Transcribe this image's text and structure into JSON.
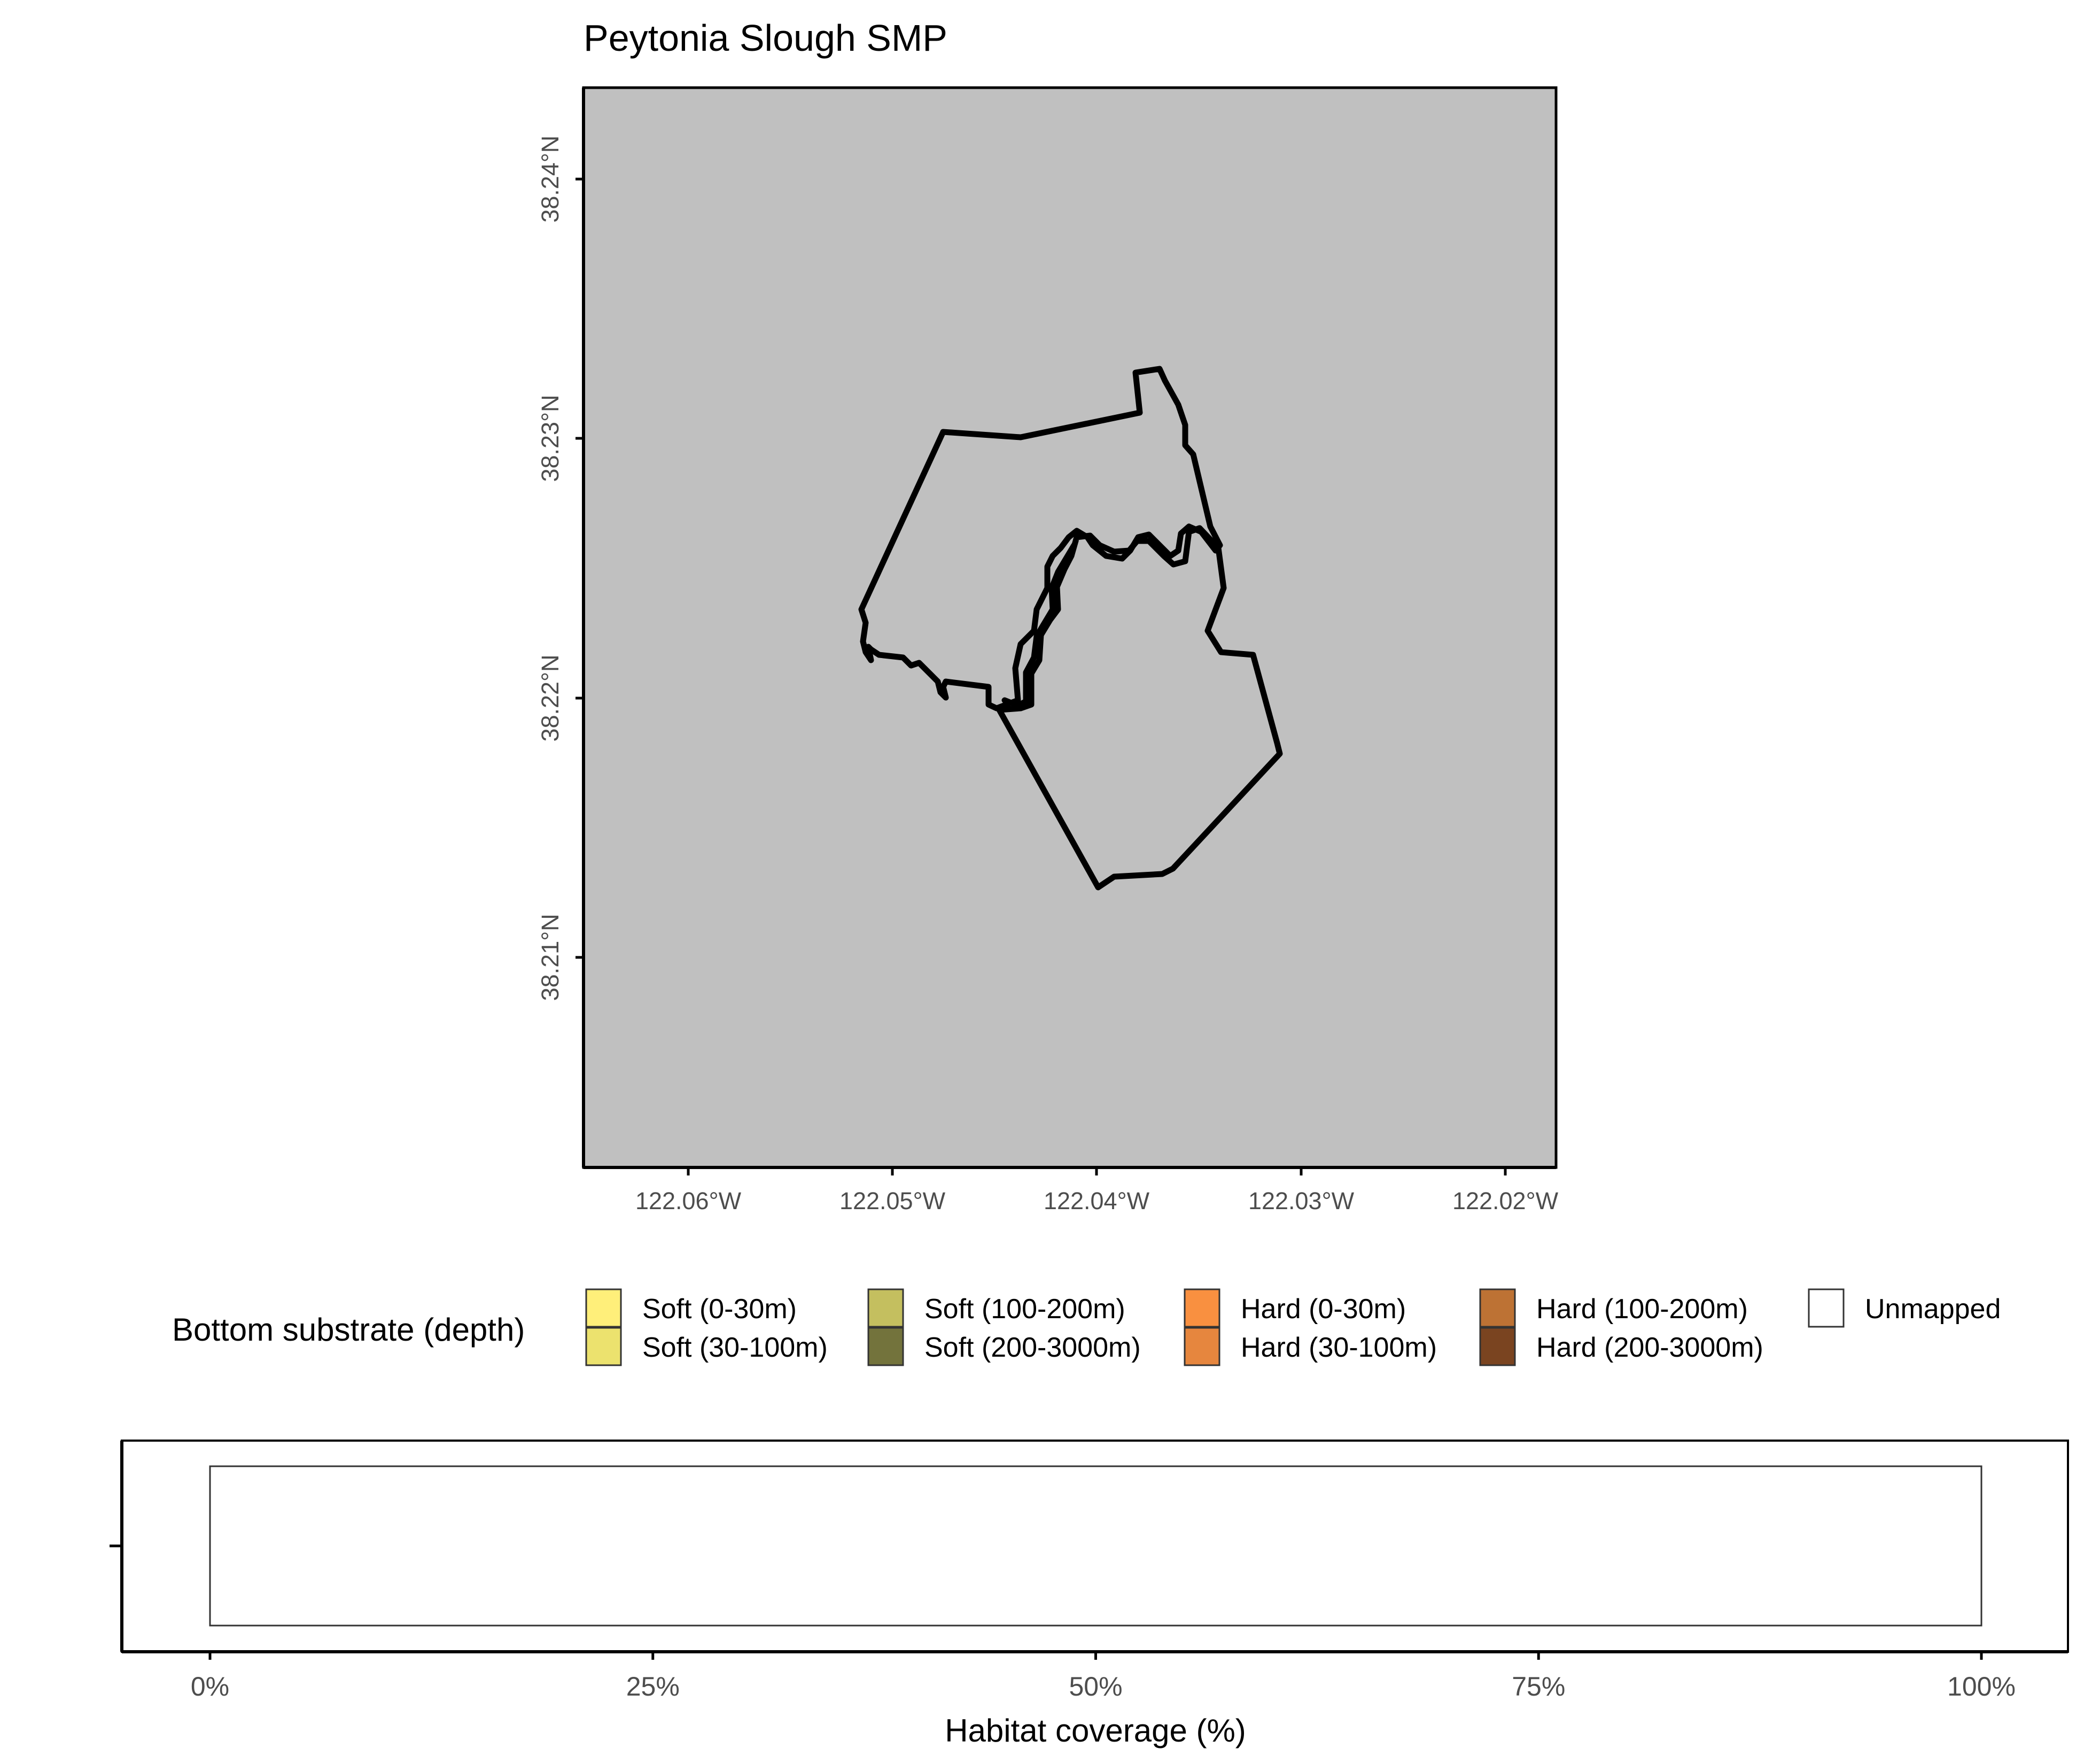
{
  "map": {
    "title": "Peytonia Slough SMP",
    "lat_ticks": [
      "38.24°N",
      "38.23°N",
      "38.22°N",
      "38.21°N"
    ],
    "lon_ticks": [
      "122.06°W",
      "122.05°W",
      "122.04°W",
      "122.03°W",
      "122.02°W"
    ],
    "panel_fill": "#c0c0c0",
    "boundary_color": "#000000"
  },
  "legend": {
    "title": "Bottom substrate (depth)",
    "items": [
      {
        "label": "Soft (0-30m)",
        "color": "#ffef7a"
      },
      {
        "label": "Soft (30-100m)",
        "color": "#ece26e"
      },
      {
        "label": "Soft (100-200m)",
        "color": "#c4bf5f"
      },
      {
        "label": "Soft (200-3000m)",
        "color": "#73733c"
      },
      {
        "label": "Hard (0-30m)",
        "color": "#f99040"
      },
      {
        "label": "Hard (30-100m)",
        "color": "#e6863e"
      },
      {
        "label": "Hard (100-200m)",
        "color": "#bd7234"
      },
      {
        "label": "Hard (200-3000m)",
        "color": "#7a4420"
      },
      {
        "label": "Unmapped",
        "color": "#ffffff"
      }
    ]
  },
  "chart_data": {
    "type": "bar",
    "orientation": "horizontal",
    "xlabel": "Habitat coverage (%)",
    "xlim": [
      0,
      100
    ],
    "x_ticks": [
      "0%",
      "25%",
      "50%",
      "75%",
      "100%"
    ],
    "series": [
      {
        "name": "Unmapped",
        "value": 100,
        "color": "#ffffff"
      }
    ]
  }
}
